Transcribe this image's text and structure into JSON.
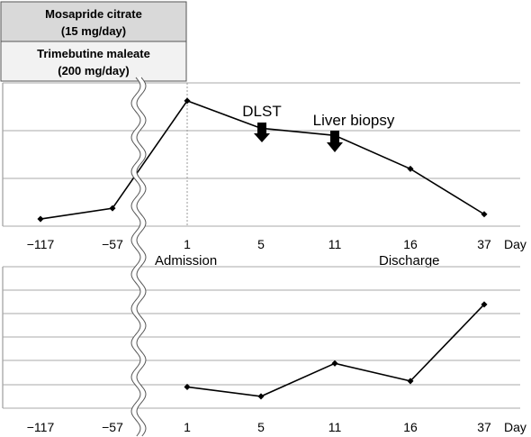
{
  "drug_boxes": [
    {
      "line1": "Mosapride citrate",
      "line2": "(15 mg/day)",
      "fill": "#d9d9d9"
    },
    {
      "line1": "Trimebutine maleate",
      "line2": "(200 mg/day)",
      "fill": "#f2f2f2"
    }
  ],
  "chart_data": [
    {
      "type": "line",
      "categories": [
        "−117",
        "−57",
        "1",
        "5",
        "11",
        "16",
        "37"
      ],
      "x_unit": "Day",
      "series": [
        {
          "values": [
            0.3,
            0.75,
            5.25,
            4.1,
            3.8,
            2.4,
            0.5
          ]
        }
      ],
      "ylim": [
        0,
        6
      ],
      "grid": true,
      "annotations": [
        {
          "text": "DLST",
          "at_category": "5",
          "arrow": true
        },
        {
          "text": "Liver biopsy",
          "at_category": "11",
          "arrow": true
        },
        {
          "text": "Admission",
          "at_category": "1",
          "arrow": false
        },
        {
          "text": "Discharge",
          "at_category": "16",
          "arrow": false
        }
      ]
    },
    {
      "type": "line",
      "categories": [
        "−117",
        "−57",
        "1",
        "5",
        "11",
        "16",
        "37"
      ],
      "x_unit": "Day",
      "series": [
        {
          "values": [
            null,
            null,
            0.6,
            0.2,
            1.6,
            0.85,
            4.1
          ]
        }
      ],
      "ylim": [
        -0.3,
        5.7
      ],
      "grid": true
    }
  ]
}
